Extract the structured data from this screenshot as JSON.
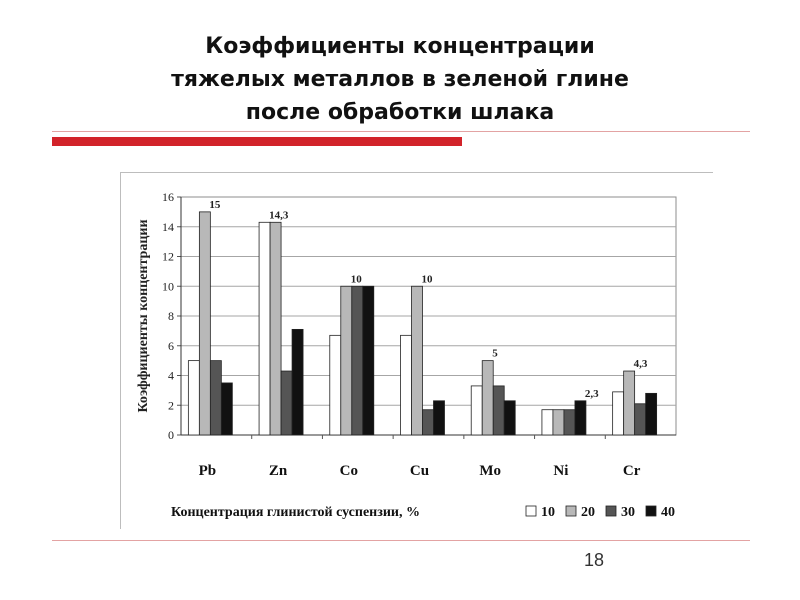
{
  "slide": {
    "title_lines": [
      "Коэффициенты концентрации",
      "тяжелых металлов в зеленой глине",
      "после обработки шлака"
    ],
    "page_number": "18"
  },
  "colors": {
    "accent_bar": "#d2232a",
    "divider": "#e3a3a3"
  },
  "chart_data": {
    "type": "bar",
    "categories": [
      "Pb",
      "Zn",
      "Co",
      "Cu",
      "Mo",
      "Ni",
      "Cr"
    ],
    "series": [
      {
        "name": "10",
        "color": "#ffffff",
        "values": [
          5.0,
          14.3,
          6.7,
          6.7,
          3.3,
          1.7,
          2.9
        ]
      },
      {
        "name": "20",
        "color": "#b8b8b8",
        "values": [
          15.0,
          14.3,
          10.0,
          10.0,
          5.0,
          1.7,
          4.3
        ]
      },
      {
        "name": "30",
        "color": "#555555",
        "values": [
          5.0,
          4.3,
          10.0,
          1.7,
          3.3,
          1.7,
          2.1
        ]
      },
      {
        "name": "40",
        "color": "#111111",
        "values": [
          3.5,
          7.1,
          10.0,
          2.3,
          2.3,
          2.3,
          2.8
        ]
      }
    ],
    "data_labels": [
      "15",
      "14,3",
      "10",
      "10",
      "5",
      "2,3",
      "4,3"
    ],
    "ylabel": "Коэффициенты концентрации",
    "legend_title": "Концентрация глинистой суспензии, %",
    "legend_placement": "bottom",
    "ylim": [
      0,
      16
    ],
    "yticks": [
      0,
      2,
      4,
      6,
      8,
      10,
      12,
      14,
      16
    ],
    "grid": true
  }
}
